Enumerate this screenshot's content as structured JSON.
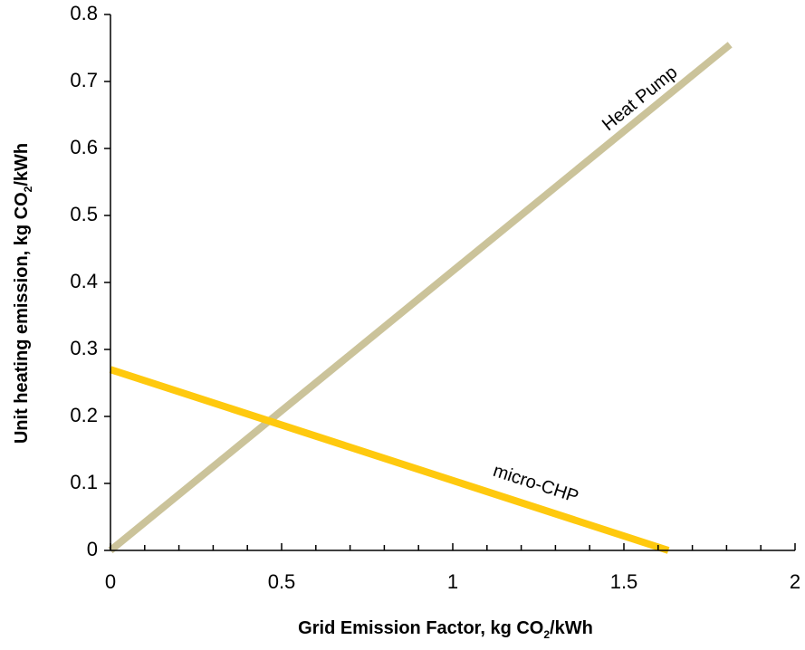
{
  "chart_data": {
    "type": "line",
    "title": "",
    "xlabel": {
      "main": "Grid Emission Factor, kg CO",
      "subscript": "2",
      "suffix": "/kWh"
    },
    "ylabel": {
      "main": "Unit heating emission, kg CO",
      "subscript": "2",
      "suffix": "/kWh"
    },
    "xlim": [
      0,
      2
    ],
    "ylim": [
      0,
      0.8
    ],
    "x_ticks": [
      0,
      0.5,
      1,
      1.5,
      2
    ],
    "x_tick_labels": [
      "0",
      "0.5",
      "1",
      "1.5",
      "2"
    ],
    "x_minor_step": 0.1,
    "y_ticks": [
      0,
      0.1,
      0.2,
      0.3,
      0.4,
      0.5,
      0.6,
      0.7,
      0.8
    ],
    "y_tick_labels": [
      "0",
      "0.1",
      "0.2",
      "0.3",
      "0.4",
      "0.5",
      "0.6",
      "0.7",
      "0.8"
    ],
    "grid": false,
    "legend": "none",
    "series": [
      {
        "name": "Heat Pump",
        "color": "#CBC39A",
        "points": [
          [
            0,
            0
          ],
          [
            1.81,
            0.755
          ]
        ]
      },
      {
        "name": "micro-CHP",
        "color": "#FFC90E",
        "points": [
          [
            0,
            0.27
          ],
          [
            1.63,
            0
          ]
        ]
      }
    ]
  }
}
